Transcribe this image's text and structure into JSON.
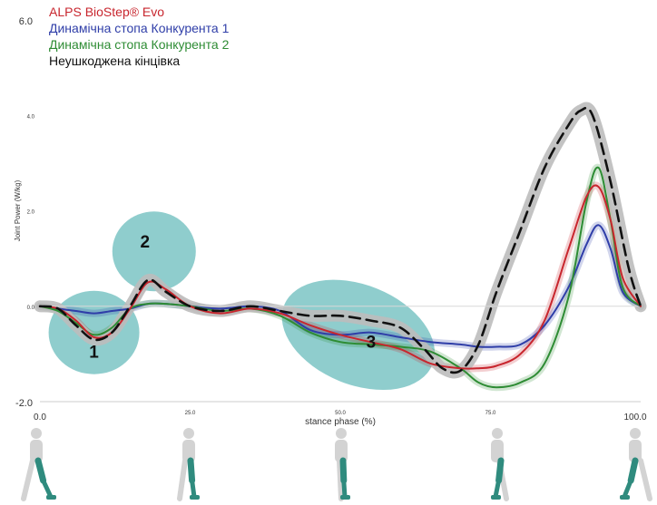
{
  "chart_data": {
    "type": "line",
    "xlabel": "stance phase (%)",
    "ylabel": "Joint Power (W/kg)",
    "xlim": [
      0,
      100
    ],
    "ylim": [
      -2,
      6
    ],
    "x_ticks": [
      "0.0",
      "25.0",
      "50.0",
      "75.0",
      "100.0"
    ],
    "y_ticks": [
      "6.0",
      "4.0",
      "2.0",
      "0.0",
      "-2.0"
    ],
    "grid": false,
    "legend_position": "top-left",
    "series": [
      {
        "name": "ALPS BioStep® Evo",
        "color": "#c8262e",
        "x": [
          0,
          3,
          6,
          9,
          12,
          15,
          18,
          21,
          25,
          30,
          35,
          40,
          45,
          50,
          55,
          60,
          65,
          70,
          73,
          76,
          80,
          84,
          88,
          91,
          93,
          95,
          97,
          100
        ],
        "y": [
          0,
          -0.05,
          -0.3,
          -0.65,
          -0.55,
          -0.05,
          0.5,
          0.35,
          0,
          -0.15,
          -0.05,
          -0.15,
          -0.4,
          -0.6,
          -0.75,
          -0.9,
          -1.2,
          -1.3,
          -1.3,
          -1.25,
          -1.0,
          -0.3,
          1.2,
          2.3,
          2.5,
          1.8,
          0.6,
          0
        ]
      },
      {
        "name": "Динамічна стопа Конкурента 1",
        "color": "#2f3ea8",
        "x": [
          0,
          3,
          6,
          9,
          12,
          15,
          18,
          21,
          25,
          30,
          35,
          40,
          45,
          50,
          55,
          60,
          65,
          70,
          73,
          76,
          80,
          84,
          88,
          91,
          93,
          95,
          97,
          100
        ],
        "y": [
          0,
          -0.05,
          -0.1,
          -0.15,
          -0.1,
          -0.05,
          0.05,
          0.05,
          0,
          -0.05,
          0,
          -0.1,
          -0.5,
          -0.6,
          -0.55,
          -0.65,
          -0.75,
          -0.8,
          -0.85,
          -0.85,
          -0.8,
          -0.4,
          0.4,
          1.3,
          1.7,
          1.2,
          0.3,
          0
        ]
      },
      {
        "name": "Динамічна стопа Конкурента 2",
        "color": "#2e8c34",
        "x": [
          0,
          3,
          6,
          9,
          12,
          15,
          18,
          21,
          25,
          30,
          35,
          40,
          45,
          50,
          55,
          60,
          65,
          70,
          73,
          76,
          80,
          84,
          88,
          91,
          93,
          95,
          97,
          100
        ],
        "y": [
          0,
          -0.1,
          -0.35,
          -0.6,
          -0.45,
          -0.05,
          0.05,
          0.05,
          0,
          -0.1,
          -0.05,
          -0.2,
          -0.55,
          -0.75,
          -0.8,
          -0.85,
          -0.95,
          -1.3,
          -1.6,
          -1.7,
          -1.6,
          -1.2,
          0.2,
          2.2,
          2.9,
          1.8,
          0.4,
          0
        ]
      },
      {
        "name": "Неушкоджена кінцівка",
        "color": "#111111",
        "dashed": true,
        "x": [
          0,
          3,
          6,
          9,
          12,
          15,
          18,
          21,
          25,
          30,
          35,
          40,
          45,
          50,
          55,
          60,
          64,
          67,
          70,
          73,
          76,
          80,
          84,
          88,
          90,
          92,
          95,
          98,
          100
        ],
        "y": [
          0,
          -0.05,
          -0.4,
          -0.7,
          -0.55,
          0,
          0.55,
          0.3,
          0,
          -0.1,
          0,
          -0.1,
          -0.2,
          -0.2,
          -0.3,
          -0.45,
          -0.9,
          -1.3,
          -1.35,
          -0.8,
          0.3,
          1.6,
          2.9,
          3.8,
          4.1,
          4.0,
          2.6,
          0.8,
          0
        ]
      }
    ],
    "annotations": [
      {
        "label": "1",
        "x": 9,
        "y": -0.65
      },
      {
        "label": "2",
        "x": 19,
        "y": 1.15
      },
      {
        "label": "3",
        "x": 53,
        "y": -0.55
      }
    ]
  },
  "figures": {
    "count": 5,
    "description": "walking figure silhouettes with prosthetic leg highlighted"
  }
}
